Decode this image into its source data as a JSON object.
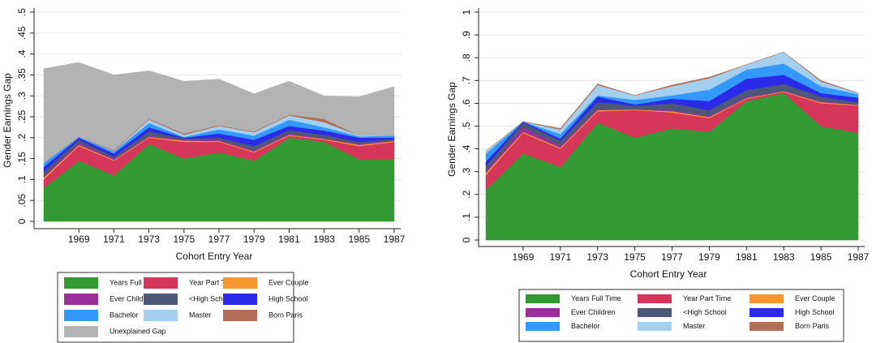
{
  "chart_data": [
    {
      "type": "area",
      "stacked": true,
      "xlabel": "Cohort Entry Year",
      "ylabel": "Gender Earnings Gap",
      "x": [
        1967,
        1969,
        1971,
        1973,
        1975,
        1977,
        1979,
        1981,
        1983,
        1985,
        1987
      ],
      "xlim": [
        1967,
        1987
      ],
      "xticks": [
        1969,
        1971,
        1973,
        1975,
        1977,
        1979,
        1981,
        1983,
        1985,
        1987
      ],
      "ylim": [
        0,
        0.5
      ],
      "yticks": [
        0,
        {
          "value": 0.05,
          "label": ".05"
        },
        {
          "value": 0.1,
          "label": ".1"
        },
        {
          "value": 0.15,
          "label": ".15"
        },
        {
          "value": 0.2,
          "label": ".2"
        },
        {
          "value": 0.25,
          "label": ".25"
        },
        {
          "value": 0.3,
          "label": ".3"
        },
        {
          "value": 0.35,
          "label": ".35"
        },
        {
          "value": 0.4,
          "label": ".4"
        },
        {
          "value": 0.45,
          "label": ".45"
        },
        {
          "value": 0.5,
          "label": ".5"
        }
      ],
      "grid": true,
      "legend": "bottom",
      "series": [
        {
          "name": "Years Full Time",
          "color": "#339933",
          "values": [
            0.08,
            0.145,
            0.11,
            0.185,
            0.15,
            0.165,
            0.145,
            0.2,
            0.19,
            0.148,
            0.15
          ]
        },
        {
          "name": "Year Part Time",
          "color": "#d6365a",
          "values": [
            0.02,
            0.035,
            0.035,
            0.015,
            0.04,
            0.025,
            0.02,
            0.005,
            0.005,
            0.032,
            0.04
          ]
        },
        {
          "name": "Ever Couple",
          "color": "#f7972f",
          "values": [
            0.005,
            0.003,
            0.002,
            0.002,
            0.003,
            0.002,
            0.002,
            0.002,
            0.002,
            0.003,
            0.002
          ]
        },
        {
          "name": "Ever Children",
          "color": "#9a2f9a",
          "values": [
            0.005,
            0.005,
            0.003,
            0.003,
            0.002,
            0.003,
            0.003,
            0.003,
            0.002,
            0.002,
            0.002
          ]
        },
        {
          "name": "<High School",
          "color": "#4b5877",
          "values": [
            0.01,
            0.007,
            0.005,
            0.01,
            0.003,
            0.005,
            0.01,
            0.008,
            0.008,
            0.005,
            0.003
          ]
        },
        {
          "name": "High School",
          "color": "#2a2ae8",
          "values": [
            0.01,
            0.005,
            0.007,
            0.01,
            0.002,
            0.01,
            0.015,
            0.01,
            0.01,
            0.01,
            0.003
          ]
        },
        {
          "name": "Bachelor",
          "color": "#3399ff",
          "values": [
            0.01,
            0.002,
            0.005,
            0.01,
            0.002,
            0.01,
            0.01,
            0.015,
            0.008,
            0.003,
            0.005
          ]
        },
        {
          "name": "Master",
          "color": "#a5cfee",
          "values": [
            0,
            0,
            0.001,
            0.008,
            0.005,
            0.008,
            0.008,
            0.01,
            0.012,
            0.002,
            0
          ]
        },
        {
          "name": "Born Paris",
          "color": "#b07058",
          "values": [
            0,
            0,
            0.002,
            0.002,
            0.003,
            0.002,
            0.002,
            0.002,
            0.008,
            0,
            0
          ]
        },
        {
          "name": "Unexplained Gap",
          "color": "#b3b3b3",
          "values": [
            0.225,
            0.178,
            0.18,
            0.115,
            0.125,
            0.11,
            0.09,
            0.08,
            0.055,
            0.093,
            0.117
          ]
        }
      ]
    },
    {
      "type": "area",
      "stacked": true,
      "xlabel": "Cohort Entry Year",
      "ylabel": "Gender Earnings Gap",
      "x": [
        1967,
        1969,
        1971,
        1973,
        1975,
        1977,
        1979,
        1981,
        1983,
        1985,
        1987
      ],
      "xlim": [
        1967,
        1987
      ],
      "xticks": [
        1969,
        1971,
        1973,
        1975,
        1977,
        1979,
        1981,
        1983,
        1985,
        1987
      ],
      "ylim": [
        0,
        1
      ],
      "yticks": [
        0,
        {
          "value": 0.1,
          "label": ".1"
        },
        {
          "value": 0.2,
          "label": ".2"
        },
        {
          "value": 0.3,
          "label": ".3"
        },
        {
          "value": 0.4,
          "label": ".4"
        },
        {
          "value": 0.5,
          "label": ".5"
        },
        {
          "value": 0.6,
          "label": ".6"
        },
        {
          "value": 0.7,
          "label": ".7"
        },
        {
          "value": 0.8,
          "label": ".8"
        },
        {
          "value": 0.9,
          "label": ".9"
        },
        1
      ],
      "grid": true,
      "legend": "bottom",
      "series": [
        {
          "name": "Years Full Time",
          "color": "#339933",
          "values": [
            0.22,
            0.38,
            0.32,
            0.515,
            0.45,
            0.49,
            0.475,
            0.61,
            0.645,
            0.5,
            0.47
          ]
        },
        {
          "name": "Year Part Time",
          "color": "#d6365a",
          "values": [
            0.065,
            0.09,
            0.08,
            0.05,
            0.12,
            0.07,
            0.06,
            0.01,
            0.005,
            0.1,
            0.12
          ]
        },
        {
          "name": "Ever Couple",
          "color": "#f7972f",
          "values": [
            0.01,
            0.005,
            0.005,
            0.005,
            0.003,
            0.005,
            0.005,
            0.003,
            0.003,
            0.005,
            0.003
          ]
        },
        {
          "name": "Ever Children",
          "color": "#9a2f9a",
          "values": [
            0.01,
            0.02,
            0.01,
            0.005,
            0.002,
            0.005,
            0.005,
            0.005,
            0.002,
            0.005,
            0.002
          ]
        },
        {
          "name": "<High School",
          "color": "#4b5877",
          "values": [
            0.02,
            0.02,
            0.02,
            0.03,
            0.015,
            0.03,
            0.025,
            0.03,
            0.03,
            0.02,
            0.01
          ]
        },
        {
          "name": "High School",
          "color": "#2a2ae8",
          "values": [
            0.02,
            0.005,
            0.01,
            0.025,
            0.005,
            0.02,
            0.04,
            0.05,
            0.04,
            0.015,
            0.02
          ]
        },
        {
          "name": "Bachelor",
          "color": "#3399ff",
          "values": [
            0.035,
            0,
            0.02,
            0.005,
            0.02,
            0.015,
            0.05,
            0.04,
            0.05,
            0.03,
            0.015
          ]
        },
        {
          "name": "Master",
          "color": "#a5cfee",
          "values": [
            0.01,
            0,
            0.02,
            0.045,
            0.02,
            0.04,
            0.05,
            0.022,
            0.05,
            0.02,
            0.005
          ]
        },
        {
          "name": "Born Paris",
          "color": "#b07058",
          "values": [
            0,
            0,
            0.005,
            0.005,
            0,
            0.005,
            0.005,
            0,
            0,
            0.005,
            0
          ]
        }
      ]
    }
  ]
}
